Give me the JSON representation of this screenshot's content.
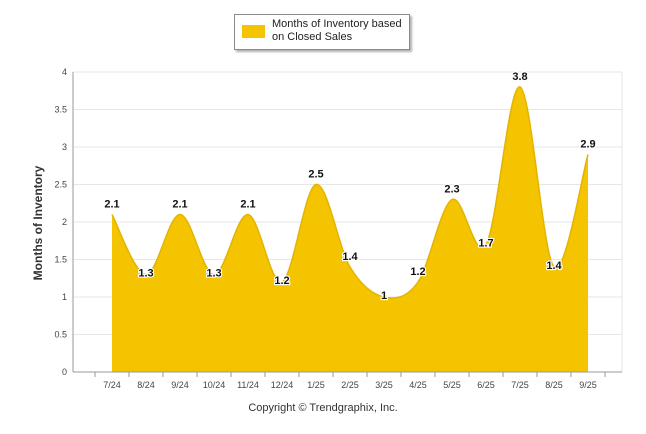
{
  "chart_data": {
    "type": "area",
    "categories": [
      "7/24",
      "8/24",
      "9/24",
      "10/24",
      "11/24",
      "12/24",
      "1/25",
      "2/25",
      "3/25",
      "4/25",
      "5/25",
      "6/25",
      "7/25",
      "8/25",
      "9/25"
    ],
    "series": [
      {
        "name": "Months of Inventory based on Closed Sales",
        "values": [
          2.1,
          1.3,
          2.1,
          1.3,
          2.1,
          1.2,
          2.5,
          1.4,
          1.0,
          1.2,
          2.3,
          1.7,
          3.8,
          1.4,
          2.9
        ],
        "labels": [
          "2.1",
          "1.3",
          "2.1",
          "1.3",
          "2.1",
          "1.2",
          "2.5",
          "1.4",
          "1",
          "1.2",
          "2.3",
          "1.7",
          "3.8",
          "1.4",
          "2.9"
        ]
      }
    ],
    "ylabel": "Months of Inventory",
    "xlabel": "",
    "ylim": [
      0,
      4
    ],
    "yticks": [
      "0",
      "0.5",
      "1",
      "1.5",
      "2",
      "2.5",
      "3",
      "3.5",
      "4"
    ],
    "grid": true,
    "legend": "top-center"
  },
  "legend": {
    "label": "Months of Inventory based on Closed Sales"
  },
  "footer": {
    "copyright": "Copyright © Trendgraphix, Inc."
  },
  "colors": {
    "fill": "#f5c400",
    "stroke": "#e2b400",
    "grid": "#e6e6e6"
  }
}
